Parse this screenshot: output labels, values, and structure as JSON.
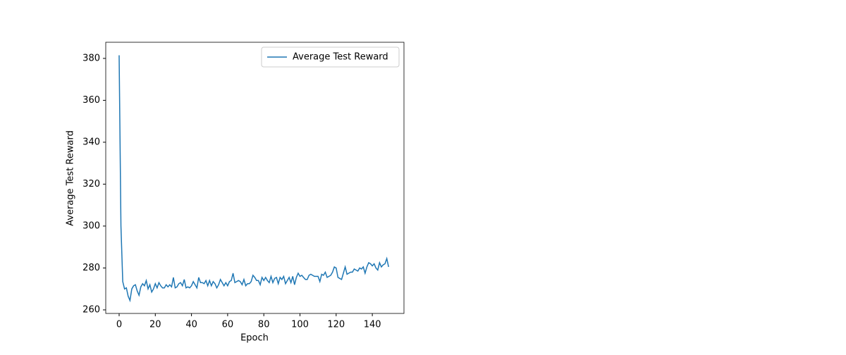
{
  "chart_data": {
    "type": "line",
    "xlabel": "Epoch",
    "ylabel": "Average Test Reward",
    "x": [
      0,
      1,
      2,
      3,
      4,
      5,
      6,
      7,
      8,
      9,
      10,
      11,
      12,
      13,
      14,
      15,
      16,
      17,
      18,
      19,
      20,
      21,
      22,
      23,
      24,
      25,
      26,
      27,
      28,
      29,
      30,
      31,
      32,
      33,
      34,
      35,
      36,
      37,
      38,
      39,
      40,
      41,
      42,
      43,
      44,
      45,
      46,
      47,
      48,
      49,
      50,
      51,
      52,
      53,
      54,
      55,
      56,
      57,
      58,
      59,
      60,
      61,
      62,
      63,
      64,
      65,
      66,
      67,
      68,
      69,
      70,
      71,
      72,
      73,
      74,
      75,
      76,
      77,
      78,
      79,
      80,
      81,
      82,
      83,
      84,
      85,
      86,
      87,
      88,
      89,
      90,
      91,
      92,
      93,
      94,
      95,
      96,
      97,
      98,
      99,
      100,
      101,
      102,
      103,
      104,
      105,
      106,
      107,
      108,
      109,
      110,
      111,
      112,
      113,
      114,
      115,
      116,
      117,
      118,
      119,
      120,
      121,
      122,
      123,
      124,
      125,
      126,
      127,
      128,
      129,
      130,
      131,
      132,
      133,
      134,
      135,
      136,
      137,
      138,
      139,
      140,
      141,
      142,
      143,
      144,
      145,
      146,
      147,
      148,
      149
    ],
    "series": [
      {
        "name": "Average Test Reward",
        "color": "#1f77b4",
        "values": [
          381.5,
          300,
          273.5,
          270,
          270.5,
          266.5,
          264.5,
          270,
          271.5,
          272,
          269,
          267,
          271,
          272.5,
          271.5,
          274,
          270,
          272,
          268.5,
          270,
          272.5,
          270.5,
          273,
          271.5,
          270.5,
          270.5,
          272,
          271,
          272,
          271,
          275.5,
          270.5,
          271,
          272.5,
          273,
          271.5,
          274.5,
          270.5,
          271,
          270.5,
          271.5,
          273.5,
          272,
          270.5,
          275.5,
          273,
          273,
          272.5,
          274,
          271.5,
          274,
          271.5,
          273.5,
          272.5,
          270.5,
          272,
          274.5,
          273,
          271.5,
          273,
          271.5,
          273.5,
          274,
          277.5,
          273,
          273.5,
          274,
          273.5,
          272,
          274.5,
          271.5,
          272.5,
          272.5,
          273.5,
          276.5,
          275.5,
          274,
          274,
          272,
          275.5,
          274,
          275.5,
          274,
          273,
          276,
          273,
          275,
          275.5,
          272.5,
          275.5,
          274.5,
          276,
          272.5,
          274,
          275.5,
          273,
          276,
          272,
          275.5,
          277.5,
          276,
          276.5,
          275.5,
          274.5,
          274.5,
          276.5,
          277,
          276.5,
          276,
          276,
          276,
          273.5,
          277,
          276.5,
          278,
          275.5,
          276,
          276.5,
          278,
          280.5,
          280,
          275.5,
          275,
          274.5,
          277.5,
          280.5,
          277,
          277.5,
          278,
          278,
          279.5,
          279,
          278.5,
          280,
          279.5,
          280.5,
          277.5,
          280.5,
          282.5,
          282,
          281,
          282,
          280,
          279,
          282.5,
          280.5,
          281.5,
          282,
          284.5,
          280.5
        ]
      }
    ],
    "xlim": [
      -7.4,
      157.5
    ],
    "ylim": [
      258.3,
      387.7
    ],
    "xticks": [
      0,
      20,
      40,
      60,
      80,
      100,
      120,
      140
    ],
    "yticks": [
      260,
      280,
      300,
      320,
      340,
      360,
      380
    ],
    "legend": "upper right"
  }
}
